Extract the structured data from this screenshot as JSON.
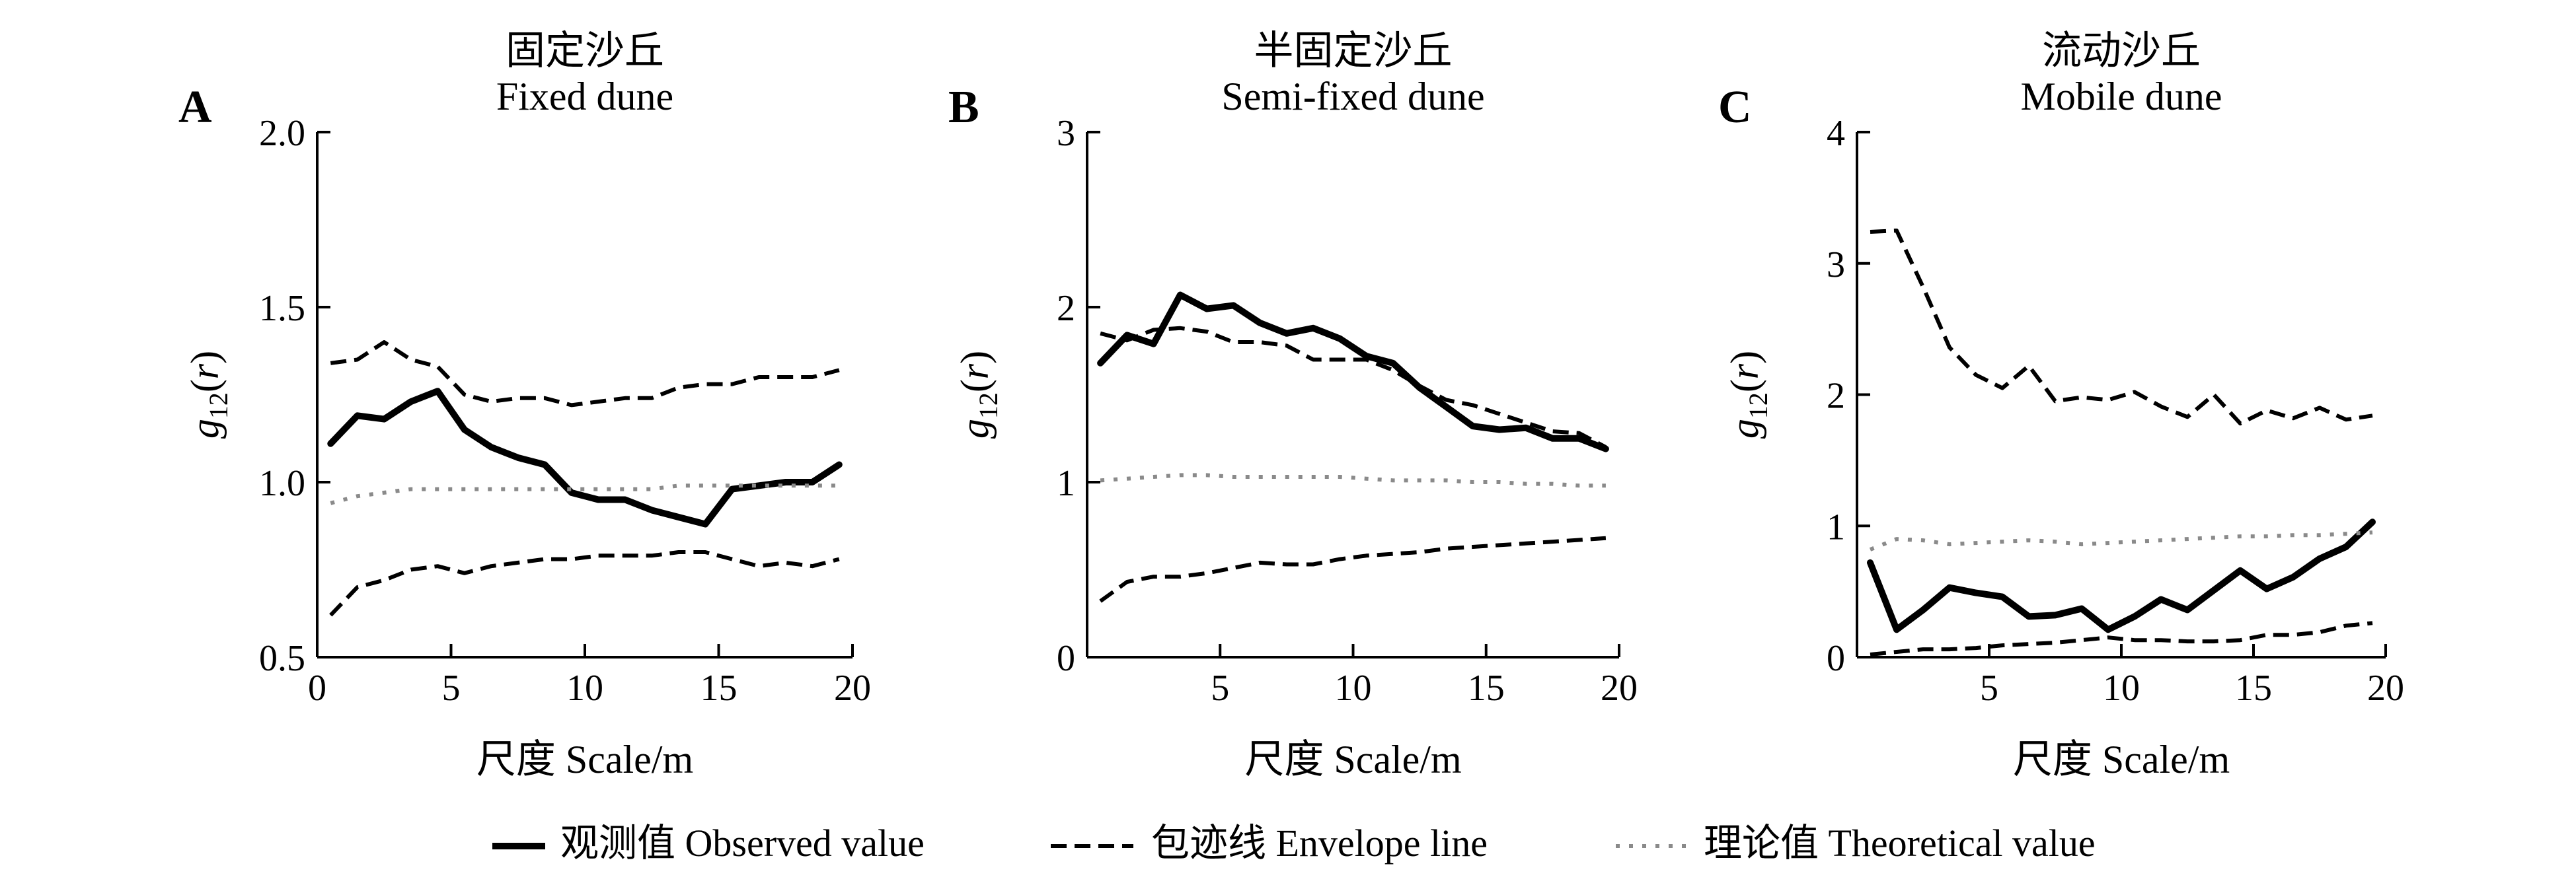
{
  "legend": {
    "observed": "观测值 Observed value",
    "envelope": "包迹线 Envelope line",
    "theoretical": "理论值 Theoretical value"
  },
  "chart_data": [
    {
      "type": "line",
      "panel_letter": "A",
      "title_zh": "固定沙丘",
      "title_en": "Fixed dune",
      "xlabel": "尺度 Scale/m",
      "ylabel": "g12(r)",
      "xlim": [
        0,
        20
      ],
      "ylim": [
        0.5,
        2.0
      ],
      "xticks": [
        0,
        5,
        10,
        15,
        20
      ],
      "xtick_labels": [
        "0",
        "5",
        "10",
        "15",
        "20"
      ],
      "yticks": [
        0.5,
        1.0,
        1.5,
        2.0
      ],
      "ytick_labels": [
        "0.5",
        "1.0",
        "1.5",
        "2.0"
      ],
      "x": [
        0.5,
        1.5,
        2.5,
        3.5,
        4.5,
        5.5,
        6.5,
        7.5,
        8.5,
        9.5,
        10.5,
        11.5,
        12.5,
        13.5,
        14.5,
        15.5,
        16.5,
        17.5,
        18.5,
        19.5
      ],
      "series": [
        {
          "name": "观测值 Observed value",
          "values": [
            1.11,
            1.19,
            1.18,
            1.23,
            1.26,
            1.15,
            1.1,
            1.07,
            1.05,
            0.97,
            0.95,
            0.95,
            0.92,
            0.9,
            0.88,
            0.98,
            0.99,
            1.0,
            1.0,
            1.05
          ]
        },
        {
          "name": "包迹线 Envelope line (upper)",
          "values": [
            1.34,
            1.35,
            1.4,
            1.35,
            1.33,
            1.25,
            1.23,
            1.24,
            1.24,
            1.22,
            1.23,
            1.24,
            1.24,
            1.27,
            1.28,
            1.28,
            1.3,
            1.3,
            1.3,
            1.32
          ]
        },
        {
          "name": "包迹线 Envelope line (lower)",
          "values": [
            0.62,
            0.7,
            0.72,
            0.75,
            0.76,
            0.74,
            0.76,
            0.77,
            0.78,
            0.78,
            0.79,
            0.79,
            0.79,
            0.8,
            0.8,
            0.78,
            0.76,
            0.77,
            0.76,
            0.78
          ]
        },
        {
          "name": "理论值 Theoretical value",
          "values": [
            0.94,
            0.96,
            0.97,
            0.98,
            0.98,
            0.98,
            0.98,
            0.98,
            0.98,
            0.98,
            0.98,
            0.98,
            0.98,
            0.99,
            0.99,
            0.99,
            0.99,
            0.99,
            0.99,
            0.99
          ]
        }
      ]
    },
    {
      "type": "line",
      "panel_letter": "B",
      "title_zh": "半固定沙丘",
      "title_en": "Semi-fixed dune",
      "xlabel": "尺度 Scale/m",
      "ylabel": "g12(r)",
      "xlim": [
        0,
        20
      ],
      "ylim": [
        0,
        3
      ],
      "xticks": [
        5,
        10,
        15,
        20
      ],
      "xtick_labels": [
        "5",
        "10",
        "15",
        "20"
      ],
      "yticks": [
        0,
        1,
        2,
        3
      ],
      "ytick_labels": [
        "0",
        "1",
        "2",
        "3"
      ],
      "x": [
        0.5,
        1.5,
        2.5,
        3.5,
        4.5,
        5.5,
        6.5,
        7.5,
        8.5,
        9.5,
        10.5,
        11.5,
        12.5,
        13.5,
        14.5,
        15.5,
        16.5,
        17.5,
        18.5,
        19.5
      ],
      "series": [
        {
          "name": "观测值 Observed value",
          "values": [
            1.68,
            1.84,
            1.79,
            2.07,
            1.99,
            2.01,
            1.91,
            1.85,
            1.88,
            1.82,
            1.72,
            1.68,
            1.54,
            1.43,
            1.32,
            1.3,
            1.31,
            1.25,
            1.25,
            1.19
          ]
        },
        {
          "name": "包迹线 Envelope line (upper)",
          "values": [
            1.85,
            1.81,
            1.87,
            1.88,
            1.86,
            1.8,
            1.8,
            1.78,
            1.7,
            1.7,
            1.7,
            1.64,
            1.55,
            1.47,
            1.44,
            1.39,
            1.34,
            1.29,
            1.28,
            1.2
          ]
        },
        {
          "name": "包迹线 Envelope line (lower)",
          "values": [
            0.32,
            0.43,
            0.46,
            0.46,
            0.48,
            0.51,
            0.54,
            0.53,
            0.53,
            0.56,
            0.58,
            0.59,
            0.6,
            0.62,
            0.63,
            0.64,
            0.65,
            0.66,
            0.67,
            0.68
          ]
        },
        {
          "name": "理论值 Theoretical value",
          "values": [
            1.01,
            1.02,
            1.03,
            1.04,
            1.04,
            1.03,
            1.03,
            1.03,
            1.03,
            1.03,
            1.02,
            1.01,
            1.01,
            1.01,
            1.0,
            1.0,
            0.99,
            0.99,
            0.98,
            0.98
          ]
        }
      ]
    },
    {
      "type": "line",
      "panel_letter": "C",
      "title_zh": "流动沙丘",
      "title_en": "Mobile dune",
      "xlabel": "尺度 Scale/m",
      "ylabel": "g12(r)",
      "xlim": [
        0,
        20
      ],
      "ylim": [
        0,
        4
      ],
      "xticks": [
        5,
        10,
        15,
        20
      ],
      "xtick_labels": [
        "5",
        "10",
        "15",
        "20"
      ],
      "yticks": [
        0,
        1,
        2,
        3,
        4
      ],
      "ytick_labels": [
        "0",
        "1",
        "2",
        "3",
        "4"
      ],
      "x": [
        0.5,
        1.5,
        2.5,
        3.5,
        4.5,
        5.5,
        6.5,
        7.5,
        8.5,
        9.5,
        10.5,
        11.5,
        12.5,
        13.5,
        14.5,
        15.5,
        16.5,
        17.5,
        18.5,
        19.5
      ],
      "series": [
        {
          "name": "观测值 Observed value",
          "values": [
            0.72,
            0.21,
            0.36,
            0.53,
            0.49,
            0.46,
            0.31,
            0.32,
            0.37,
            0.21,
            0.31,
            0.44,
            0.36,
            0.51,
            0.66,
            0.52,
            0.61,
            0.75,
            0.84,
            1.03
          ]
        },
        {
          "name": "包迹线 Envelope line (upper)",
          "values": [
            3.24,
            3.25,
            2.82,
            2.36,
            2.15,
            2.05,
            2.22,
            1.95,
            1.98,
            1.96,
            2.02,
            1.91,
            1.83,
            2.0,
            1.78,
            1.88,
            1.82,
            1.9,
            1.81,
            1.84
          ]
        },
        {
          "name": "包迹线 Envelope line (lower)",
          "values": [
            0.02,
            0.04,
            0.06,
            0.06,
            0.07,
            0.09,
            0.1,
            0.11,
            0.13,
            0.15,
            0.13,
            0.13,
            0.12,
            0.12,
            0.13,
            0.17,
            0.17,
            0.19,
            0.24,
            0.26
          ]
        },
        {
          "name": "理论值 Theoretical value",
          "values": [
            0.82,
            0.9,
            0.89,
            0.86,
            0.87,
            0.88,
            0.89,
            0.88,
            0.86,
            0.87,
            0.88,
            0.89,
            0.9,
            0.91,
            0.92,
            0.92,
            0.93,
            0.93,
            0.94,
            0.95
          ]
        }
      ]
    }
  ]
}
